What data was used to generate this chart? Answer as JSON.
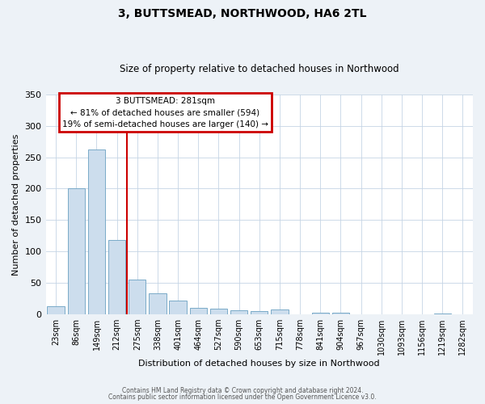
{
  "title": "3, BUTTSMEAD, NORTHWOOD, HA6 2TL",
  "subtitle": "Size of property relative to detached houses in Northwood",
  "xlabel": "Distribution of detached houses by size in Northwood",
  "ylabel": "Number of detached properties",
  "bar_labels": [
    "23sqm",
    "86sqm",
    "149sqm",
    "212sqm",
    "275sqm",
    "338sqm",
    "401sqm",
    "464sqm",
    "527sqm",
    "590sqm",
    "653sqm",
    "715sqm",
    "778sqm",
    "841sqm",
    "904sqm",
    "967sqm",
    "1030sqm",
    "1093sqm",
    "1156sqm",
    "1219sqm",
    "1282sqm"
  ],
  "bar_values": [
    13,
    200,
    262,
    118,
    55,
    34,
    22,
    10,
    9,
    6,
    5,
    8,
    0,
    3,
    3,
    0,
    0,
    0,
    0,
    2,
    0
  ],
  "bar_color": "#ccdded",
  "bar_edge_color": "#7aaac8",
  "ylim": [
    0,
    350
  ],
  "yticks": [
    0,
    50,
    100,
    150,
    200,
    250,
    300,
    350
  ],
  "vline_x_index": 3.5,
  "vline_color": "#cc0000",
  "annotation_title": "3 BUTTSMEAD: 281sqm",
  "annotation_line1": "← 81% of detached houses are smaller (594)",
  "annotation_line2": "19% of semi-detached houses are larger (140) →",
  "annotation_box_color": "#cc0000",
  "footer1": "Contains HM Land Registry data © Crown copyright and database right 2024.",
  "footer2": "Contains public sector information licensed under the Open Government Licence v3.0.",
  "background_color": "#edf2f7",
  "plot_bg_color": "#ffffff"
}
